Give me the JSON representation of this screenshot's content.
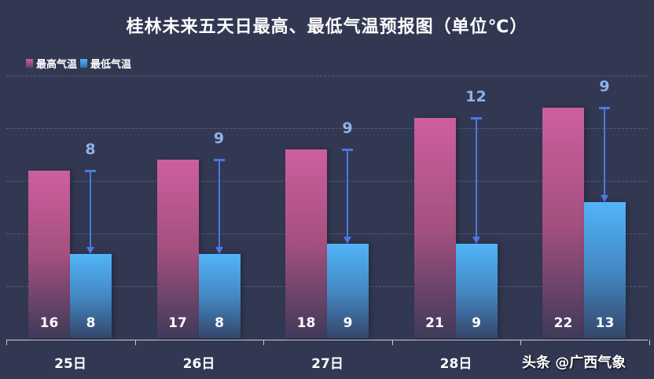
{
  "chart_data": {
    "type": "bar",
    "title": "桂林未来五天日最高、最低气温预报图（单位℃）",
    "categories": [
      "25日",
      "26日",
      "27日",
      "28日",
      "29日"
    ],
    "series": [
      {
        "name": "最高气温",
        "values": [
          16,
          17,
          18,
          21,
          22
        ],
        "color": "#cd5f9e"
      },
      {
        "name": "最低气温",
        "values": [
          8,
          8,
          9,
          9,
          13
        ],
        "color": "#52b4f8"
      }
    ],
    "annotations": {
      "diurnal_range": [
        8,
        9,
        9,
        12,
        9
      ],
      "description": "Arrows from max to min temperature labeled with the daily temperature difference"
    },
    "xlabel": "",
    "ylabel": "",
    "ylim": [
      0,
      25
    ],
    "grid": true,
    "legend_position": "top-left"
  },
  "title": "桂林未来五天日最高、最低气温预报图（单位℃）",
  "legend": [
    {
      "label": "最高气温",
      "color": "#cd5f9e"
    },
    {
      "label": "最低气温",
      "color": "#52b4f8"
    }
  ],
  "x_labels": [
    "25日",
    "26日",
    "27日",
    "28日",
    ""
  ],
  "high_labels": [
    "16",
    "17",
    "18",
    "21",
    "22"
  ],
  "low_labels": [
    "8",
    "8",
    "9",
    "9",
    "13"
  ],
  "diff_labels": [
    "8",
    "9",
    "9",
    "12",
    "9"
  ],
  "watermark": "头条 @广西气象"
}
